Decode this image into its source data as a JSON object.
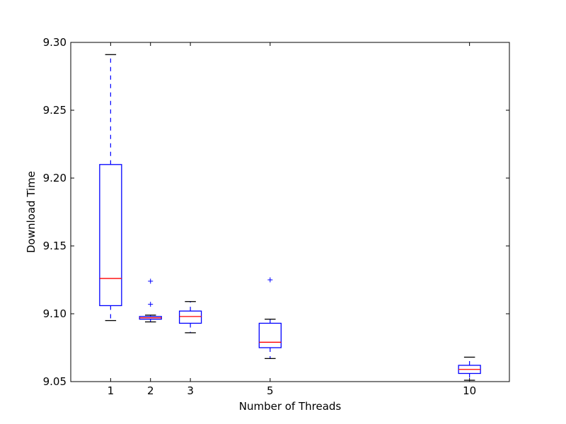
{
  "chart_data": {
    "type": "box",
    "title": "",
    "xlabel": "Number of Threads",
    "ylabel": "Download Time",
    "xlim": [
      0,
      11
    ],
    "ylim": [
      9.05,
      9.3
    ],
    "x_ticks": [
      1,
      2,
      3,
      5,
      10
    ],
    "x_tick_labels": [
      "1",
      "2",
      "3",
      "5",
      "10"
    ],
    "y_ticks": [
      9.05,
      9.1,
      9.15,
      9.2,
      9.25,
      9.3
    ],
    "y_tick_labels": [
      "9.05",
      "9.10",
      "9.15",
      "9.20",
      "9.25",
      "9.30"
    ],
    "grid": false,
    "colors": {
      "box": "#0000ff",
      "median": "#ff0000",
      "whisker_cap": "#000000",
      "axes": "#000000"
    },
    "boxes": [
      {
        "x": 1,
        "whisker_low": 9.095,
        "q1": 9.106,
        "median": 9.126,
        "q3": 9.21,
        "whisker_high": 9.291,
        "outliers": []
      },
      {
        "x": 2,
        "whisker_low": 9.094,
        "q1": 9.096,
        "median": 9.097,
        "q3": 9.098,
        "whisker_high": 9.099,
        "outliers": [
          9.107,
          9.124
        ]
      },
      {
        "x": 3,
        "whisker_low": 9.086,
        "q1": 9.093,
        "median": 9.098,
        "q3": 9.102,
        "whisker_high": 9.109,
        "outliers": []
      },
      {
        "x": 5,
        "whisker_low": 9.067,
        "q1": 9.075,
        "median": 9.079,
        "q3": 9.093,
        "whisker_high": 9.096,
        "outliers": [
          9.125
        ]
      },
      {
        "x": 10,
        "whisker_low": 9.051,
        "q1": 9.056,
        "median": 9.059,
        "q3": 9.062,
        "whisker_high": 9.068,
        "outliers": []
      }
    ]
  }
}
